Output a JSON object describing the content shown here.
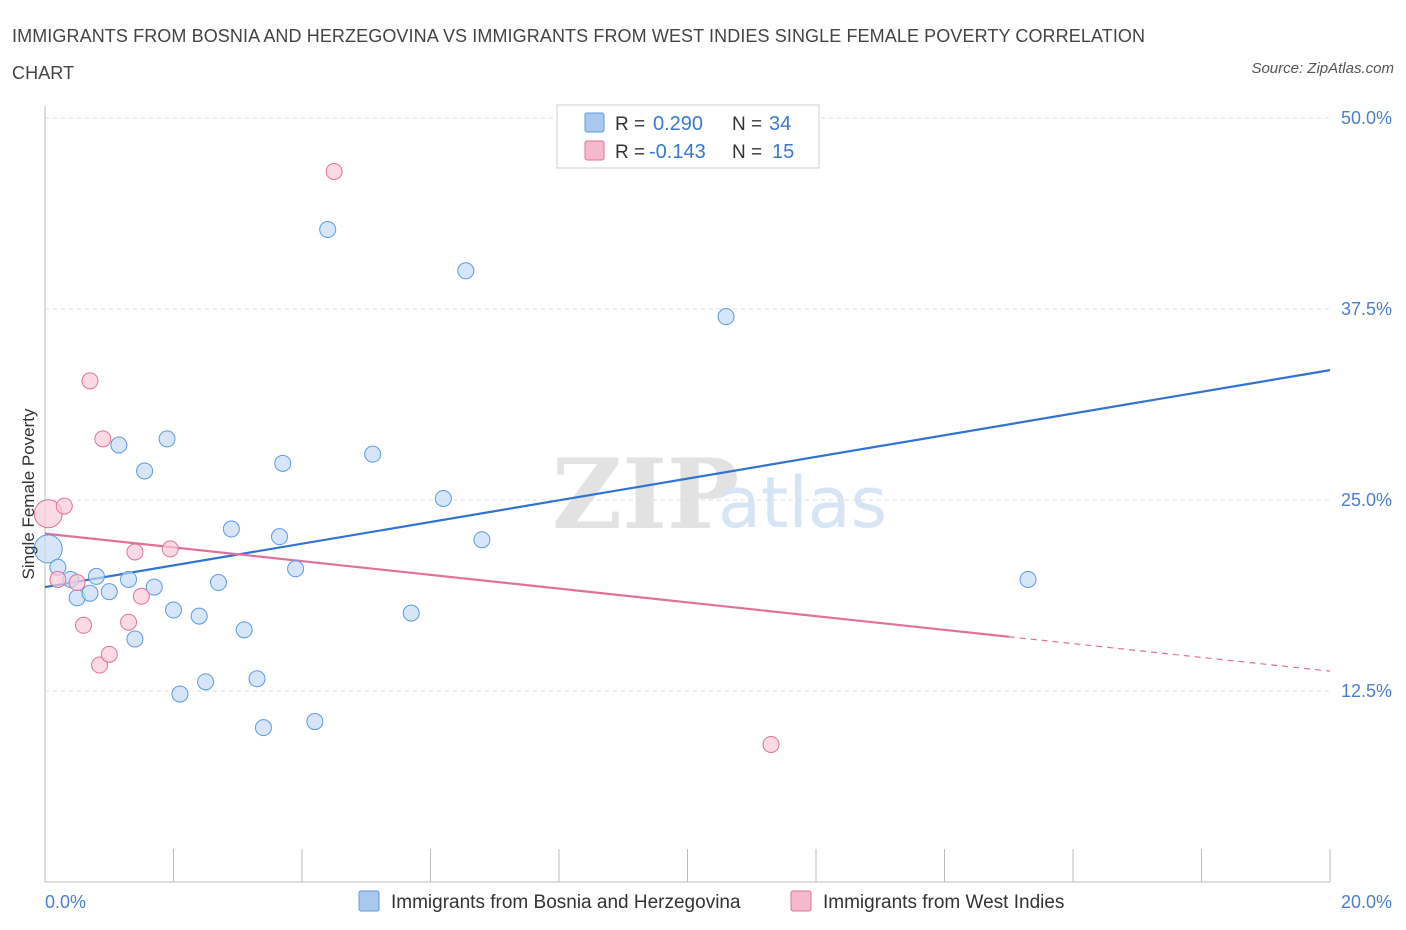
{
  "header": {
    "title": "IMMIGRANTS FROM BOSNIA AND HERZEGOVINA VS IMMIGRANTS FROM WEST INDIES SINGLE FEMALE POVERTY CORRELATION CHART",
    "source": "Source: ZipAtlas.com"
  },
  "watermark": {
    "zip": "ZIP",
    "atlas": "atlas"
  },
  "legend": {
    "r_label": "R =",
    "n_label": "N =",
    "entries": [
      {
        "r": "0.290",
        "n": "34",
        "color": "#a9c8f0"
      },
      {
        "r": "-0.143",
        "n": "15",
        "color": "#f6b8cb"
      }
    ]
  },
  "chart_data": {
    "type": "scatter",
    "ylabel": "Single Female Poverty",
    "xlim": [
      0,
      20
    ],
    "ylim": [
      0,
      50
    ],
    "x_tick_labels": [
      "0.0%",
      "20.0%"
    ],
    "y_ticks": [
      12.5,
      25.0,
      37.5,
      50.0
    ],
    "y_tick_labels": [
      "12.5%",
      "25.0%",
      "37.5%",
      "50.0%"
    ],
    "grid": true,
    "legend_position": "top-center",
    "series": [
      {
        "name": "Immigrants from Bosnia and Herzegovina",
        "color": "#5b9be0",
        "fill": "#c4daf5",
        "trend": {
          "x0": 0,
          "y0": 19.3,
          "x1": 20,
          "y1": 33.5,
          "dashed_from": null
        },
        "points": [
          [
            0.05,
            21.8
          ],
          [
            0.2,
            20.6
          ],
          [
            0.4,
            19.8
          ],
          [
            0.5,
            18.6
          ],
          [
            0.7,
            18.9
          ],
          [
            0.8,
            20.0
          ],
          [
            1.0,
            19.0
          ],
          [
            1.15,
            28.6
          ],
          [
            1.3,
            19.8
          ],
          [
            1.4,
            15.9
          ],
          [
            1.55,
            26.9
          ],
          [
            1.7,
            19.3
          ],
          [
            1.9,
            29.0
          ],
          [
            2.0,
            17.8
          ],
          [
            2.1,
            12.3
          ],
          [
            2.4,
            17.4
          ],
          [
            2.5,
            13.1
          ],
          [
            2.7,
            19.6
          ],
          [
            2.9,
            23.1
          ],
          [
            3.1,
            16.5
          ],
          [
            3.3,
            13.3
          ],
          [
            3.4,
            10.1
          ],
          [
            3.65,
            22.6
          ],
          [
            3.7,
            27.4
          ],
          [
            3.9,
            20.5
          ],
          [
            4.2,
            10.5
          ],
          [
            4.4,
            42.7
          ],
          [
            5.1,
            28.0
          ],
          [
            5.7,
            17.6
          ],
          [
            6.2,
            25.1
          ],
          [
            6.55,
            40.0
          ],
          [
            6.8,
            22.4
          ],
          [
            10.6,
            37.0
          ],
          [
            15.3,
            19.8
          ]
        ]
      },
      {
        "name": "Immigrants from West Indies",
        "color": "#e0729a",
        "fill": "#f9cbd9",
        "trend": {
          "x0": 0,
          "y0": 22.8,
          "x1": 20,
          "y1": 13.8,
          "dashed_from": 15.0
        },
        "points": [
          [
            0.05,
            24.1
          ],
          [
            0.2,
            19.8
          ],
          [
            0.3,
            24.6
          ],
          [
            0.5,
            19.6
          ],
          [
            0.6,
            16.8
          ],
          [
            0.7,
            32.8
          ],
          [
            0.85,
            14.2
          ],
          [
            0.9,
            29.0
          ],
          [
            1.0,
            14.9
          ],
          [
            1.3,
            17.0
          ],
          [
            1.4,
            21.6
          ],
          [
            1.5,
            18.7
          ],
          [
            1.95,
            21.8
          ],
          [
            4.5,
            46.5
          ],
          [
            11.3,
            9.0
          ]
        ]
      }
    ]
  }
}
